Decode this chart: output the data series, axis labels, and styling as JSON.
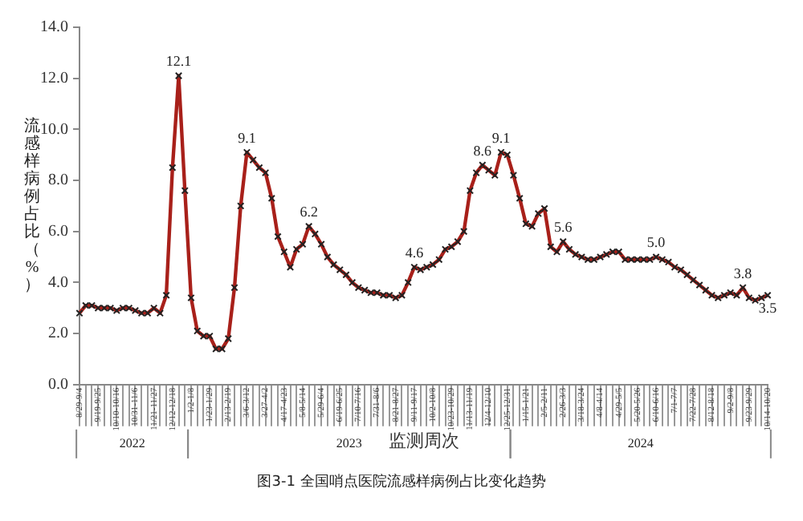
{
  "chart_data": {
    "type": "line",
    "ylabel": "流感样病例占比（%）",
    "xlabel": "监测周次",
    "categories": [
      "8/29-9/4",
      null,
      null,
      "9/19-9/25",
      null,
      null,
      "10/10-10/16",
      null,
      null,
      "10/31-11/6",
      null,
      null,
      "11/21-11/27",
      null,
      null,
      "12/12-12/18",
      null,
      null,
      "1/2-1/8",
      null,
      null,
      "1/23-1/29",
      null,
      null,
      "2/13-2/19",
      null,
      null,
      "3/6-3/12",
      null,
      null,
      "3/27-4/2",
      null,
      null,
      "4/17-4/23",
      null,
      null,
      "5/8-5/14",
      null,
      null,
      "5/29-6/4",
      null,
      null,
      "6/19-6/25",
      null,
      null,
      "7/10-7/16",
      null,
      null,
      "7/31-8/6",
      null,
      null,
      "8/21-8/27",
      null,
      null,
      "9/11-9/17",
      null,
      null,
      "10/2-10/8",
      null,
      null,
      "10/23-10/29",
      null,
      null,
      "11/13-11/19",
      null,
      null,
      "12/4-12/10",
      null,
      null,
      "12/25-12/31",
      null,
      null,
      "1/15-1/21",
      null,
      null,
      "2/5-2/11",
      null,
      null,
      "2/26-3/3",
      null,
      null,
      "3/18-3/24",
      null,
      null,
      "4/8-4/14",
      null,
      null,
      "4/29-5/5",
      null,
      null,
      "5/20-5/26",
      null,
      null,
      "6/10-6/16",
      null,
      null,
      "7/1-7/7",
      null,
      null,
      "7/22-7/28",
      null,
      null,
      "8/12-8/18",
      null,
      null,
      "9/2-9/8",
      null,
      null,
      "9/23-9/29",
      null,
      null,
      "10/14-10/20"
    ],
    "series": [
      {
        "color": "#a8201a",
        "values": [
          2.8,
          3.1,
          3.1,
          3.0,
          3.0,
          3.0,
          2.9,
          3.0,
          3.0,
          2.9,
          2.8,
          2.8,
          3.0,
          2.8,
          3.5,
          8.5,
          12.1,
          7.6,
          3.4,
          2.1,
          1.9,
          1.9,
          1.4,
          1.4,
          1.8,
          3.8,
          7.0,
          9.1,
          8.8,
          8.5,
          8.3,
          7.3,
          5.8,
          5.2,
          4.6,
          5.3,
          5.5,
          6.2,
          5.9,
          5.5,
          5.0,
          4.7,
          4.5,
          4.3,
          4.0,
          3.8,
          3.7,
          3.6,
          3.6,
          3.5,
          3.5,
          3.4,
          3.5,
          4.0,
          4.6,
          4.5,
          4.6,
          4.7,
          4.9,
          5.3,
          5.4,
          5.6,
          6.0,
          7.6,
          8.3,
          8.6,
          8.4,
          8.2,
          9.1,
          9.0,
          8.2,
          7.3,
          6.3,
          6.2,
          6.7,
          6.9,
          5.4,
          5.2,
          5.6,
          5.3,
          5.1,
          5.0,
          4.9,
          4.9,
          5.0,
          5.1,
          5.2,
          5.2,
          4.9,
          4.9,
          4.9,
          4.9,
          4.9,
          5.0,
          4.9,
          4.8,
          4.6,
          4.5,
          4.3,
          4.1,
          3.9,
          3.7,
          3.5,
          3.4,
          3.5,
          3.6,
          3.5,
          3.8,
          3.4,
          3.3,
          3.4,
          3.5
        ],
        "value_labels": [
          null,
          null,
          null,
          null,
          null,
          null,
          null,
          null,
          null,
          null,
          null,
          null,
          null,
          null,
          null,
          null,
          "12.1",
          null,
          null,
          null,
          null,
          null,
          null,
          null,
          null,
          null,
          null,
          "9.1",
          null,
          null,
          null,
          null,
          null,
          null,
          null,
          null,
          null,
          "6.2",
          null,
          null,
          null,
          null,
          null,
          null,
          null,
          null,
          null,
          null,
          null,
          null,
          null,
          null,
          null,
          null,
          "4.6",
          null,
          null,
          null,
          null,
          null,
          null,
          null,
          null,
          null,
          null,
          "8.6",
          null,
          null,
          "9.1",
          null,
          null,
          null,
          null,
          null,
          null,
          null,
          null,
          null,
          "5.6",
          null,
          null,
          null,
          null,
          null,
          null,
          null,
          null,
          null,
          null,
          null,
          null,
          null,
          null,
          "5.0",
          null,
          null,
          null,
          null,
          null,
          null,
          null,
          null,
          null,
          null,
          null,
          null,
          null,
          "3.8",
          null,
          null,
          null,
          "3.5"
        ]
      }
    ],
    "ylim": [
      0,
      14
    ],
    "yticks": [
      {
        "value": 0,
        "label": "0.0"
      },
      {
        "value": 2,
        "label": "2.0"
      },
      {
        "value": 4,
        "label": "4.0"
      },
      {
        "value": 6,
        "label": "6.0"
      },
      {
        "value": 8,
        "label": "8.0"
      },
      {
        "value": 10,
        "label": "10.0"
      },
      {
        "value": 12,
        "label": "12.0"
      },
      {
        "value": 14,
        "label": "14.0"
      }
    ],
    "grid": false,
    "legend": false,
    "marker": "cross",
    "line_style": "solid",
    "annotations": [
      "2022",
      "2023",
      "2024",
      "图3-1 全国哨点医院流感样病例占比变化趋势"
    ]
  }
}
